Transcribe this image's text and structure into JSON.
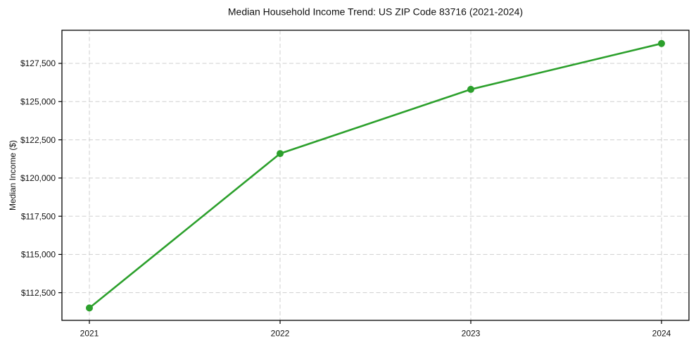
{
  "chart_data": {
    "type": "line",
    "title": "Median Household Income Trend: US ZIP Code 83716 (2021-2024)",
    "xlabel": "",
    "ylabel": "Median Income ($)",
    "categories": [
      "2021",
      "2022",
      "2023",
      "2024"
    ],
    "values": [
      111500,
      121600,
      125800,
      128800
    ],
    "yticks": [
      {
        "value": 112500,
        "label": "$112,500"
      },
      {
        "value": 115000,
        "label": "$115,000"
      },
      {
        "value": 117500,
        "label": "$117,500"
      },
      {
        "value": 120000,
        "label": "$120,000"
      },
      {
        "value": 122500,
        "label": "$122,500"
      },
      {
        "value": 125000,
        "label": "$125,000"
      },
      {
        "value": 127500,
        "label": "$127,500"
      }
    ],
    "ylim": [
      110689,
      129666
    ],
    "grid": true,
    "grid_style": "dashed",
    "legend": "none",
    "line_color": "#2ca02c",
    "marker": "circle",
    "grid_color": "#cfcfcf",
    "spine_color": "#000000",
    "text_color": "#111111",
    "background": "#ffffff"
  }
}
